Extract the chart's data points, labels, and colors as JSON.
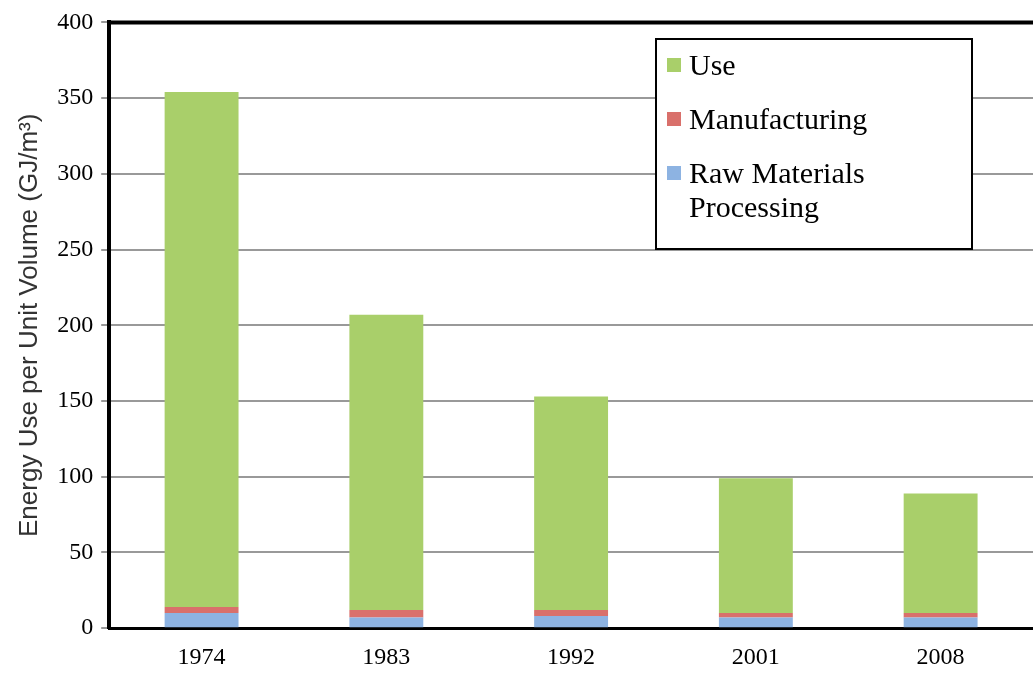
{
  "chart_data": {
    "type": "bar",
    "stacked": true,
    "ylabel": "Energy Use per Unit Volume (GJ/m³)",
    "categories": [
      "1974",
      "1983",
      "1992",
      "2001",
      "2008"
    ],
    "series": [
      {
        "name": "Raw Materials Processing",
        "color": "#8db3e2",
        "values": [
          10,
          7,
          8,
          7,
          7
        ]
      },
      {
        "name": "Manufacturing",
        "color": "#d9706b",
        "values": [
          4,
          5,
          4,
          3,
          3
        ]
      },
      {
        "name": "Use",
        "color": "#a9cf6a",
        "values": [
          340,
          195,
          141,
          89,
          79
        ]
      }
    ],
    "ylim": [
      0,
      400
    ],
    "yticks": [
      0,
      50,
      100,
      150,
      200,
      250,
      300,
      350,
      400
    ],
    "grid": "y",
    "legend": "top right"
  }
}
